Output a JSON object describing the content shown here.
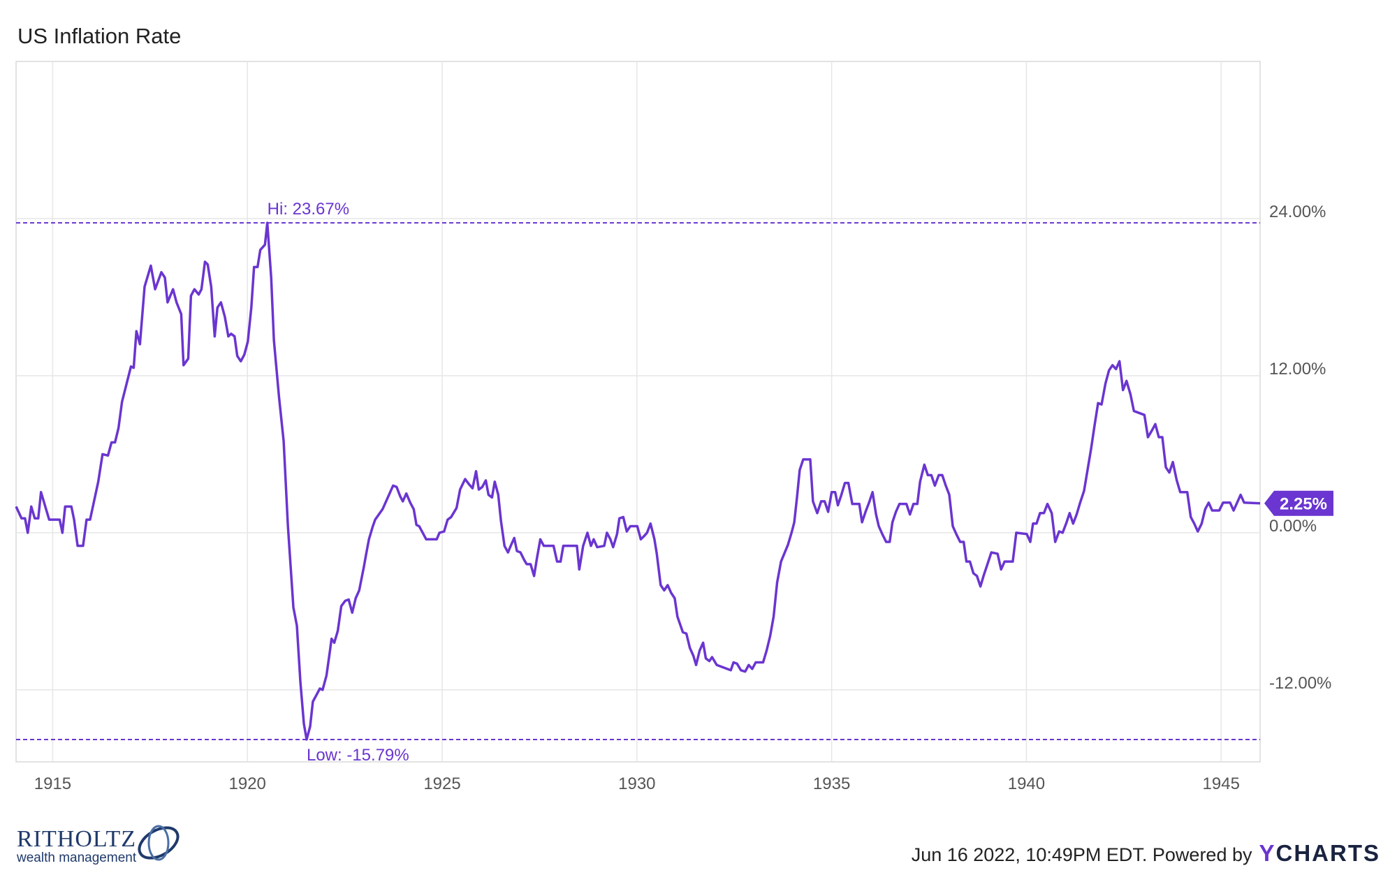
{
  "chart_data": {
    "type": "line",
    "title": "US Inflation Rate",
    "x": [
      1914.06,
      1914.2,
      1914.29,
      1914.36,
      1914.45,
      1914.54,
      1914.63,
      1914.7,
      1914.82,
      1914.91,
      1915.18,
      1915.25,
      1915.32,
      1915.48,
      1915.55,
      1915.64,
      1915.78,
      1915.87,
      1915.96,
      1916.17,
      1916.28,
      1916.42,
      1916.51,
      1916.6,
      1916.69,
      1916.78,
      1917.01,
      1917.08,
      1917.15,
      1917.24,
      1917.36,
      1917.52,
      1917.63,
      1917.79,
      1917.88,
      1917.95,
      1918.09,
      1918.18,
      1918.3,
      1918.36,
      1918.48,
      1918.55,
      1918.64,
      1918.75,
      1918.82,
      1918.91,
      1918.98,
      1919.07,
      1919.16,
      1919.23,
      1919.32,
      1919.42,
      1919.51,
      1919.58,
      1919.67,
      1919.74,
      1919.83,
      1919.92,
      1920.01,
      1920.1,
      1920.17,
      1920.26,
      1920.33,
      1920.45,
      1920.51,
      1920.61,
      1920.68,
      1920.81,
      1920.93,
      1921.04,
      1921.18,
      1921.27,
      1921.36,
      1921.45,
      1921.52,
      1921.61,
      1921.68,
      1921.77,
      1921.86,
      1921.93,
      1922.03,
      1922.12,
      1922.16,
      1922.23,
      1922.32,
      1922.41,
      1922.51,
      1922.6,
      1922.69,
      1922.78,
      1922.87,
      1922.99,
      1923.05,
      1923.12,
      1923.22,
      1923.28,
      1923.47,
      1923.65,
      1923.74,
      1923.83,
      1923.92,
      1923.99,
      1924.08,
      1924.18,
      1924.27,
      1924.34,
      1924.41,
      1924.59,
      1924.86,
      1924.93,
      1925.05,
      1925.14,
      1925.23,
      1925.37,
      1925.46,
      1925.59,
      1925.69,
      1925.78,
      1925.87,
      1925.94,
      1926.03,
      1926.12,
      1926.19,
      1926.28,
      1926.35,
      1926.44,
      1926.51,
      1926.6,
      1926.69,
      1926.76,
      1926.85,
      1926.92,
      1927.01,
      1927.11,
      1927.17,
      1927.27,
      1927.36,
      1927.43,
      1927.52,
      1927.61,
      1927.86,
      1927.95,
      1928.04,
      1928.11,
      1928.46,
      1928.52,
      1928.62,
      1928.73,
      1928.82,
      1928.89,
      1928.98,
      1929.16,
      1929.23,
      1929.32,
      1929.39,
      1929.49,
      1929.55,
      1929.65,
      1929.74,
      1929.83,
      1930.01,
      1930.1,
      1930.17,
      1930.26,
      1930.35,
      1930.45,
      1930.51,
      1930.61,
      1930.7,
      1930.79,
      1930.88,
      1930.97,
      1931.04,
      1931.18,
      1931.27,
      1931.36,
      1931.45,
      1931.52,
      1931.61,
      1931.7,
      1931.77,
      1931.86,
      1931.93,
      1932.05,
      1932.23,
      1932.41,
      1932.48,
      1932.57,
      1932.67,
      1932.78,
      1932.87,
      1932.96,
      1933.05,
      1933.24,
      1933.33,
      1933.42,
      1933.51,
      1933.6,
      1933.7,
      1933.88,
      1933.97,
      1934.04,
      1934.11,
      1934.18,
      1934.27,
      1934.45,
      1934.52,
      1934.63,
      1934.73,
      1934.82,
      1934.91,
      1935.0,
      1935.09,
      1935.16,
      1935.25,
      1935.34,
      1935.43,
      1935.53,
      1935.71,
      1935.78,
      1935.87,
      1935.96,
      1936.05,
      1936.14,
      1936.21,
      1936.3,
      1936.4,
      1936.49,
      1936.56,
      1936.65,
      1936.74,
      1936.92,
      1937.01,
      1937.1,
      1937.2,
      1937.27,
      1937.38,
      1937.47,
      1937.56,
      1937.65,
      1937.75,
      1937.84,
      1937.93,
      1938.02,
      1938.11,
      1938.2,
      1938.3,
      1938.39,
      1938.46,
      1938.55,
      1938.64,
      1938.73,
      1938.82,
      1938.91,
      1939.0,
      1939.1,
      1939.26,
      1939.35,
      1939.44,
      1939.65,
      1939.74,
      1940.01,
      1940.1,
      1940.17,
      1940.26,
      1940.35,
      1940.45,
      1940.54,
      1940.65,
      1940.74,
      1940.84,
      1940.93,
      1941.02,
      1941.11,
      1941.2,
      1941.29,
      1941.38,
      1941.48,
      1941.57,
      1941.66,
      1941.75,
      1941.84,
      1941.93,
      1942.03,
      1942.12,
      1942.21,
      1942.3,
      1942.39,
      1942.48,
      1942.57,
      1942.67,
      1942.76,
      1943.03,
      1943.12,
      1943.22,
      1943.31,
      1943.4,
      1943.49,
      1943.58,
      1943.67,
      1943.76,
      1943.86,
      1943.95,
      1944.13,
      1944.22,
      1944.31,
      1944.4,
      1944.5,
      1944.59,
      1944.68,
      1944.77,
      1944.95,
      1945.05,
      1945.23,
      1945.32,
      1945.5,
      1945.59,
      1946.0
    ],
    "series": [
      {
        "color": "#6a35d0",
        "values": [
          2.0,
          1.1,
          1.1,
          0,
          2.0,
          1.1,
          1.1,
          3.1,
          1.9,
          1.0,
          1.0,
          0,
          2.0,
          2.0,
          1.0,
          -1.0,
          -1.0,
          1.0,
          1.0,
          3.9,
          6.0,
          5.9,
          6.9,
          6.9,
          8.0,
          10.0,
          12.7,
          12.6,
          15.4,
          14.4,
          18.8,
          20.4,
          18.6,
          19.9,
          19.5,
          17.6,
          18.6,
          17.6,
          16.7,
          12.8,
          13.3,
          18.1,
          18.6,
          18.2,
          18.6,
          20.7,
          20.5,
          18.8,
          15.0,
          17.2,
          17.6,
          16.5,
          15.0,
          15.2,
          15.0,
          13.5,
          13.1,
          13.6,
          14.6,
          17.2,
          20.3,
          20.3,
          21.6,
          22.0,
          23.67,
          19.5,
          14.7,
          10.4,
          7.0,
          0.5,
          -5.7,
          -7.1,
          -11.4,
          -14.6,
          -15.79,
          -14.8,
          -12.9,
          -12.4,
          -11.9,
          -12.0,
          -10.9,
          -9.0,
          -8.1,
          -8.4,
          -7.5,
          -5.6,
          -5.2,
          -5.1,
          -6.1,
          -5.0,
          -4.4,
          -2.6,
          -1.6,
          -0.5,
          0.5,
          1.0,
          1.8,
          3.0,
          3.6,
          3.5,
          2.8,
          2.4,
          3.0,
          2.3,
          1.8,
          0.6,
          0.5,
          -0.5,
          -0.5,
          0,
          0.1,
          1.0,
          1.2,
          1.9,
          3.3,
          4.1,
          3.7,
          3.4,
          4.7,
          3.3,
          3.5,
          4.0,
          2.9,
          2.7,
          3.9,
          2.9,
          0.9,
          -1.0,
          -1.5,
          -1.0,
          -0.4,
          -1.4,
          -1.5,
          -2.1,
          -2.4,
          -2.4,
          -3.3,
          -2.0,
          -0.5,
          -1.0,
          -1.0,
          -2.2,
          -2.2,
          -1.0,
          -1.0,
          -2.8,
          -1.0,
          0,
          -1.0,
          -0.5,
          -1.1,
          -1.0,
          0,
          -0.5,
          -1.1,
          -0.1,
          1.1,
          1.2,
          0.1,
          0.5,
          0.5,
          -0.5,
          -0.3,
          0,
          0.7,
          -0.5,
          -1.6,
          -4.0,
          -4.4,
          -4.0,
          -4.6,
          -5.0,
          -6.4,
          -7.6,
          -7.7,
          -8.8,
          -9.4,
          -10.1,
          -9.0,
          -8.4,
          -9.6,
          -9.8,
          -9.5,
          -10.1,
          -10.3,
          -10.5,
          -9.9,
          -10.0,
          -10.5,
          -10.6,
          -10.1,
          -10.4,
          -9.9,
          -9.9,
          -9.0,
          -7.9,
          -6.4,
          -3.8,
          -2.2,
          -0.9,
          0,
          0.8,
          2.7,
          4.8,
          5.6,
          5.6,
          2.4,
          1.5,
          2.4,
          2.4,
          1.6,
          3.1,
          3.1,
          2.1,
          2.9,
          3.8,
          3.8,
          2.2,
          2.2,
          0.8,
          1.6,
          2.3,
          3.1,
          1.4,
          0.5,
          -0.1,
          -0.7,
          -0.7,
          0.8,
          1.6,
          2.2,
          2.2,
          1.4,
          2.2,
          2.2,
          3.9,
          5.2,
          4.4,
          4.4,
          3.6,
          4.4,
          4.4,
          3.6,
          2.9,
          0.5,
          -0.1,
          -0.7,
          -0.7,
          -2.2,
          -2.2,
          -3.1,
          -3.3,
          -4.1,
          -3.2,
          -2.4,
          -1.5,
          -1.6,
          -2.8,
          -2.2,
          -2.2,
          0,
          -0.1,
          -0.7,
          0.7,
          0.7,
          1.5,
          1.5,
          2.2,
          1.5,
          -0.7,
          0.1,
          0,
          0.7,
          1.5,
          0.7,
          1.4,
          2.3,
          3.2,
          4.8,
          6.4,
          8.2,
          9.9,
          9.8,
          11.4,
          12.4,
          12.8,
          12.5,
          13.1,
          10.9,
          11.6,
          10.6,
          9.3,
          9.0,
          7.3,
          7.8,
          8.3,
          7.3,
          7.3,
          5.0,
          4.6,
          5.4,
          4.0,
          3.1,
          3.1,
          1.2,
          0.7,
          0.1,
          0.7,
          1.8,
          2.3,
          1.7,
          1.7,
          2.3,
          2.3,
          1.7,
          2.9,
          2.3,
          2.25
        ]
      }
    ],
    "xlim": [
      1914.06,
      1946.0
    ],
    "xticks": [
      1915,
      1920,
      1925,
      1930,
      1935,
      1940,
      1945
    ],
    "ylim": [
      -17.5,
      36
    ],
    "yticks": [
      {
        "value": -12,
        "label": "-12.00%"
      },
      {
        "value": 0,
        "label": "0.00%"
      },
      {
        "value": 12,
        "label": "12.00%"
      },
      {
        "value": 24,
        "label": "24.00%"
      }
    ],
    "grid": true,
    "y_axis_side": "right",
    "annotations": {
      "hi": {
        "value": 23.67,
        "label": "Hi: 23.67%"
      },
      "low": {
        "value": -15.79,
        "label": "Low: -15.79%"
      },
      "last": {
        "value": 2.25,
        "label": "2.25%"
      }
    }
  },
  "branding": {
    "name": "RITHOLTZ",
    "subtitle": "wealth management"
  },
  "footer": {
    "timestamp": "Jun 16 2022, 10:49PM EDT. Powered by",
    "brand": "YCHARTS"
  }
}
